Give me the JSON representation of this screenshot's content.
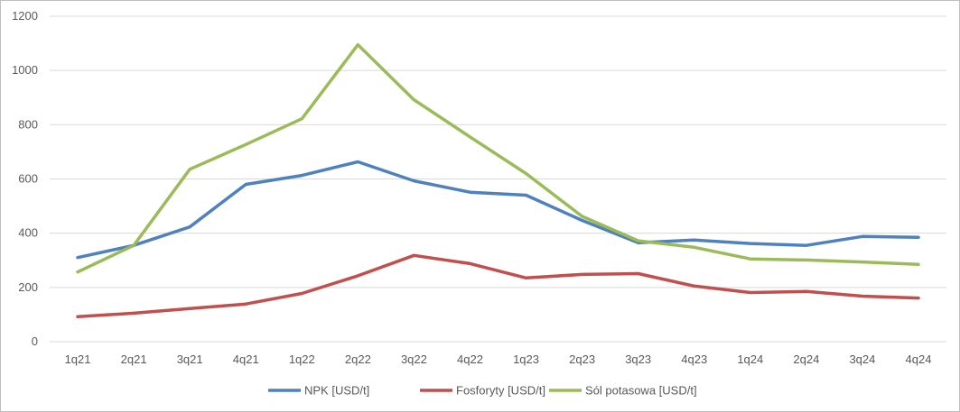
{
  "chart_data": {
    "type": "line",
    "categories": [
      "1q21",
      "2q21",
      "3q21",
      "4q21",
      "1q22",
      "2q22",
      "3q22",
      "4q22",
      "1q23",
      "2q23",
      "3q23",
      "4q23",
      "1q24",
      "2q24",
      "3q24",
      "4q24"
    ],
    "ylim": [
      0,
      1200
    ],
    "yticks": [
      "0",
      "200",
      "400",
      "600",
      "800",
      "1000",
      "1200"
    ],
    "grid": true,
    "legend_position": "bottom",
    "series": [
      {
        "name": "NPK  [USD/t]",
        "color": "#4f81bd",
        "values": [
          310,
          355,
          423,
          580,
          613,
          663,
          593,
          551,
          540,
          447,
          365,
          375,
          362,
          355,
          388,
          385
        ]
      },
      {
        "name": "Fosforyty [USD/t]",
        "color": "#c0504d",
        "values": [
          92,
          105,
          122,
          139,
          178,
          243,
          318,
          288,
          235,
          248,
          251,
          205,
          181,
          185,
          168,
          161
        ]
      },
      {
        "name": "Sól potasowa [USD/t]",
        "color": "#9bbb59",
        "values": [
          257,
          355,
          636,
          727,
          822,
          1095,
          892,
          755,
          620,
          462,
          372,
          348,
          305,
          301,
          294,
          285
        ]
      }
    ]
  }
}
